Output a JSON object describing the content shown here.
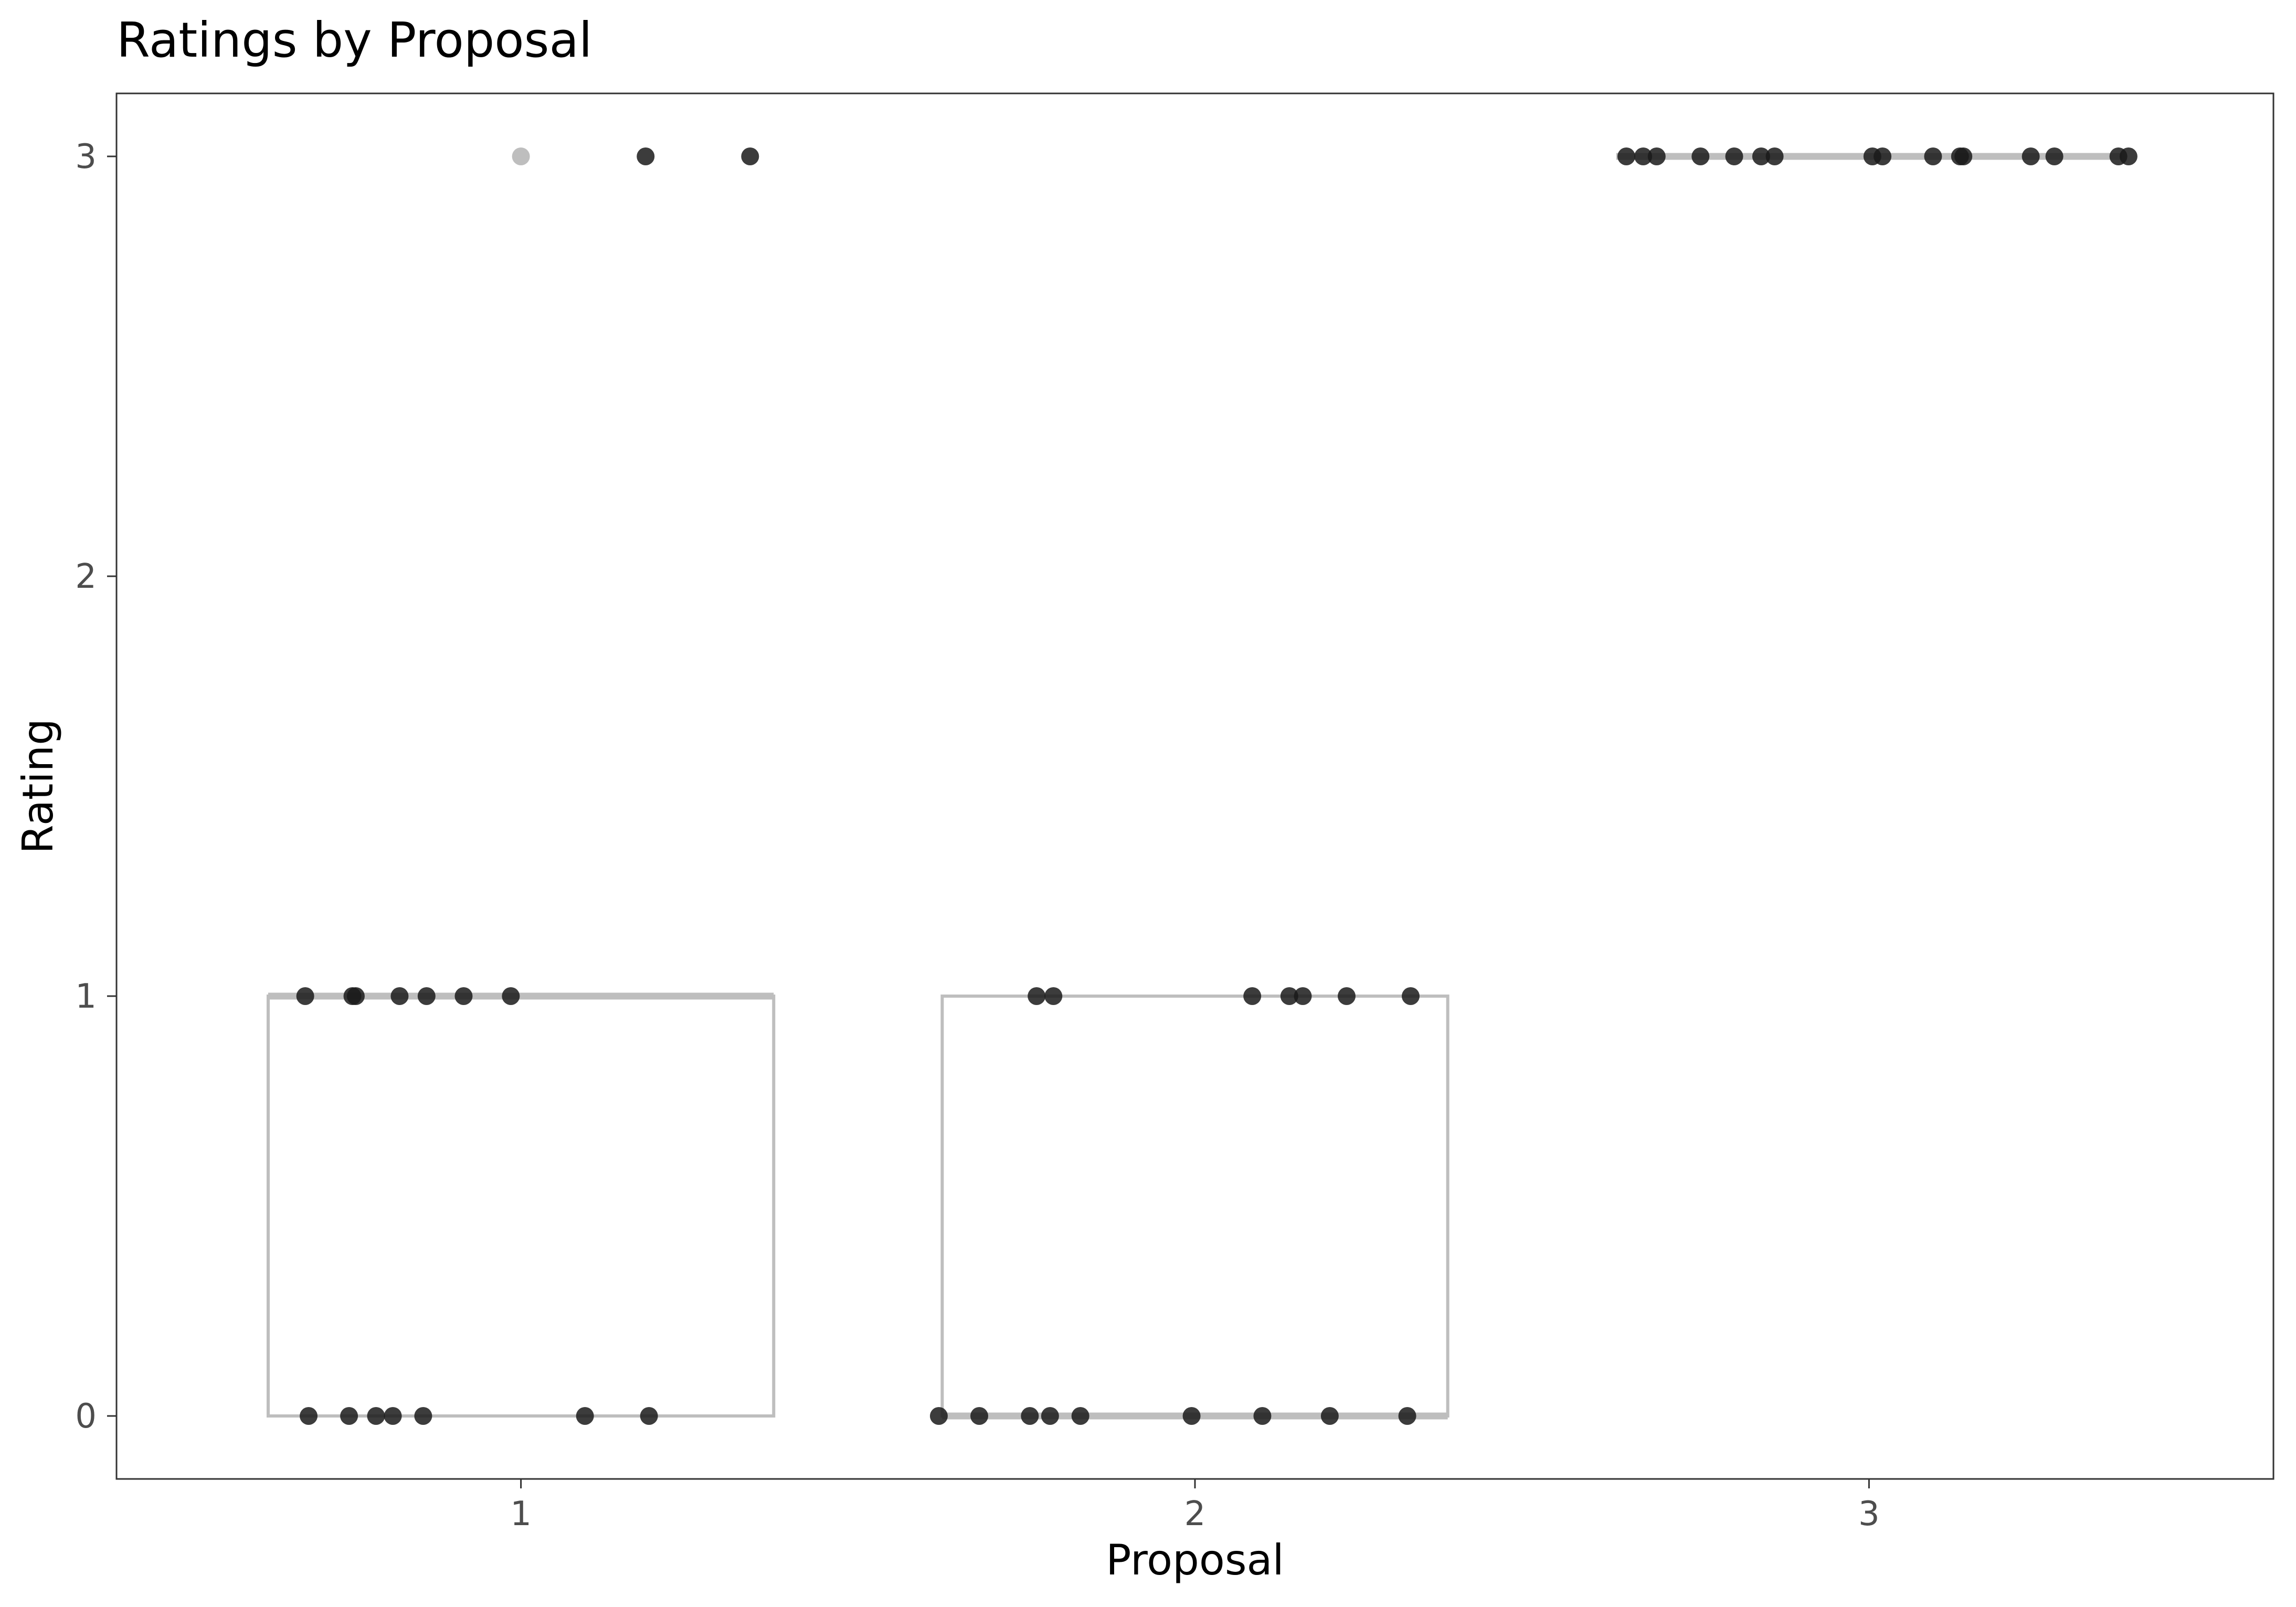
{
  "chart_data": {
    "type": "boxplot",
    "title": "Ratings by Proposal",
    "xlabel": "Proposal",
    "ylabel": "Rating",
    "categories": [
      "1",
      "2",
      "3"
    ],
    "yticks": [
      "0",
      "1",
      "2",
      "3"
    ],
    "ylim": [
      -0.15,
      3.15
    ],
    "grid": false,
    "legend": "none",
    "colors": {
      "box": "#bebebe",
      "point": "#1a1a1a",
      "outlier": "#bebebe",
      "panel_border": "#333333"
    },
    "boxes": [
      {
        "category": "1",
        "min": 0,
        "q1": 0,
        "median": 1,
        "q3": 1,
        "max": 1,
        "outliers": [
          3
        ]
      },
      {
        "category": "2",
        "min": 0,
        "q1": 0,
        "median": 0,
        "q3": 1,
        "max": 1,
        "outliers": []
      },
      {
        "category": "3",
        "min": 3,
        "q1": 3,
        "median": 3,
        "q3": 3,
        "max": 3,
        "outliers": []
      }
    ],
    "points": [
      {
        "x": 0.68,
        "y": 1
      },
      {
        "x": 0.75,
        "y": 1
      },
      {
        "x": 0.755,
        "y": 1
      },
      {
        "x": 0.82,
        "y": 1
      },
      {
        "x": 0.86,
        "y": 1
      },
      {
        "x": 0.915,
        "y": 1
      },
      {
        "x": 0.985,
        "y": 1
      },
      {
        "x": 1.185,
        "y": 3
      },
      {
        "x": 1.34,
        "y": 3
      },
      {
        "x": 0.685,
        "y": 0
      },
      {
        "x": 0.745,
        "y": 0
      },
      {
        "x": 0.785,
        "y": 0
      },
      {
        "x": 0.81,
        "y": 0
      },
      {
        "x": 0.855,
        "y": 0
      },
      {
        "x": 1.095,
        "y": 0
      },
      {
        "x": 1.19,
        "y": 0
      },
      {
        "x": 1.765,
        "y": 1
      },
      {
        "x": 1.79,
        "y": 1
      },
      {
        "x": 2.085,
        "y": 1
      },
      {
        "x": 2.14,
        "y": 1
      },
      {
        "x": 2.16,
        "y": 1
      },
      {
        "x": 2.225,
        "y": 1
      },
      {
        "x": 2.32,
        "y": 1
      },
      {
        "x": 1.62,
        "y": 0
      },
      {
        "x": 1.68,
        "y": 0
      },
      {
        "x": 1.755,
        "y": 0
      },
      {
        "x": 1.785,
        "y": 0
      },
      {
        "x": 1.83,
        "y": 0
      },
      {
        "x": 1.995,
        "y": 0
      },
      {
        "x": 2.1,
        "y": 0
      },
      {
        "x": 2.2,
        "y": 0
      },
      {
        "x": 2.315,
        "y": 0
      },
      {
        "x": 2.64,
        "y": 3
      },
      {
        "x": 2.665,
        "y": 3
      },
      {
        "x": 2.685,
        "y": 3
      },
      {
        "x": 2.75,
        "y": 3
      },
      {
        "x": 2.8,
        "y": 3
      },
      {
        "x": 2.84,
        "y": 3
      },
      {
        "x": 2.86,
        "y": 3
      },
      {
        "x": 3.005,
        "y": 3
      },
      {
        "x": 3.02,
        "y": 3
      },
      {
        "x": 3.095,
        "y": 3
      },
      {
        "x": 3.135,
        "y": 3
      },
      {
        "x": 3.14,
        "y": 3
      },
      {
        "x": 3.24,
        "y": 3
      },
      {
        "x": 3.275,
        "y": 3
      },
      {
        "x": 3.37,
        "y": 3
      },
      {
        "x": 3.385,
        "y": 3
      }
    ]
  }
}
